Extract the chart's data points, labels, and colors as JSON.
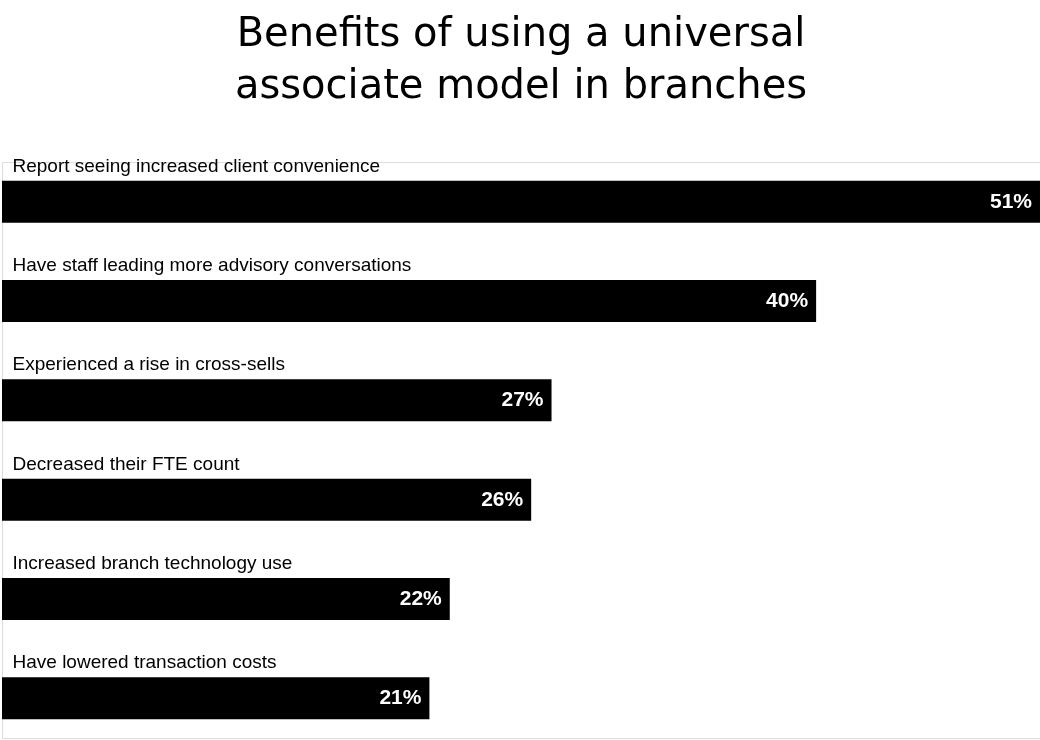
{
  "chart_data": {
    "type": "bar",
    "orientation": "horizontal",
    "title": "Benefits of using a universal associate model in branches",
    "categories": [
      "Report seeing increased client convenience",
      "Have staff leading more advisory conversations",
      "Experienced a rise in cross-sells",
      "Decreased their FTE count",
      "Increased branch technology use",
      "Have lowered transaction costs"
    ],
    "values": [
      51,
      40,
      27,
      26,
      22,
      21
    ],
    "color": "#000000",
    "xlim": [
      0,
      51
    ],
    "data_labels": true,
    "value_labels": [
      "51%",
      "40%",
      "27%",
      "26%",
      "22%",
      "21%"
    ],
    "tick_labels": "y"
  }
}
